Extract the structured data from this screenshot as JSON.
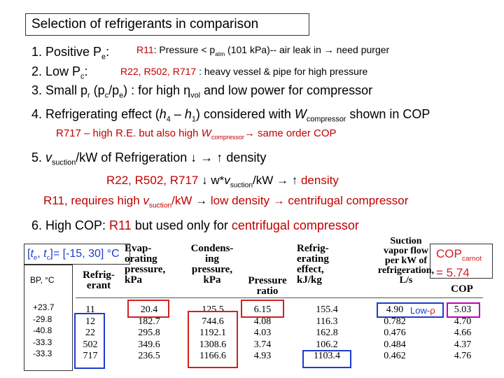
{
  "title": "Selection of refrigerants in comparison",
  "items": {
    "i1_lead": "1. Positive P",
    "i1_sub": "e",
    "i1_colon": ":",
    "i1_note_r": "R11",
    "i1_note_a": ": Pressure < p",
    "i1_note_sub": "atm",
    "i1_note_b": " (101 kPa)-- air leak in ",
    "i1_arrow": "→",
    "i1_note_c": " need purger",
    "i2_lead": "2. Low P",
    "i2_sub": "c",
    "i2_colon": ":",
    "i2_note_r": "R22, R502, R717",
    "i2_note_a": " : heavy vessel & pipe for high pressure",
    "i3_a": "3. Small p",
    "i3_sub1": "r",
    "i3_b": " (p",
    "i3_sub2": "c",
    "i3_c": "/p",
    "i3_sub3": "e",
    "i3_d": ") : for high ",
    "i3_eta": "η",
    "i3_sub4": "vol",
    "i3_e": " and low power for compressor",
    "i4_a": "4. Refrigerating effect (",
    "i4_h4": "h",
    "i4_sub4": "4",
    "i4_b": " – ",
    "i4_h1": "h",
    "i4_sub1": "1",
    "i4_c": ") considered with ",
    "i4_w": "W",
    "i4_subw": "compressor",
    "i4_d": " shown in COP",
    "i4n_a": "R717 – high R.E. but also high ",
    "i4n_w": "W",
    "i4n_sub": "compressor",
    "i4n_arrow": "→",
    "i4n_b": " same order COP",
    "i5_a": "5. ",
    "i5_v": "v",
    "i5_sub": "suction",
    "i5_b": "/kW of Refrigeration ",
    "i5_arrows": "↓ → ↑",
    "i5_c": " density",
    "i5n1_a": "R22, R502, R717 ",
    "i5n1_arrow": "↓",
    "i5n1_b": " w*",
    "i5n1_v": "v",
    "i5n1_sub": "suction",
    "i5n1_c": "/kW ",
    "i5n1_arrows": "→ ↑",
    "i5n1_d": " density",
    "i5n2_a": "R11, requires high ",
    "i5n2_v": "v",
    "i5n2_sub": "suction",
    "i5n2_b": "/kW ",
    "i5n2_arrow": "→",
    "i5n2_c": " low density ",
    "i5n2_arrow2": "→",
    "i5n2_d": " centrifugal compressor",
    "i6_a": "6. High COP: ",
    "i6_b": "R11",
    "i6_c": " but used only for ",
    "i6_d": "centrifugal compressor"
  },
  "conditions": {
    "a": "[",
    "te": "t",
    "te_sub": "e",
    "b": ", ",
    "tc": "t",
    "tc_sub": "c",
    "c": "]= [-15, 30] °C"
  },
  "cop_carnot": {
    "label": "COP",
    "sub": "carnot",
    "value": "= 5.74"
  },
  "bp_label": "BP, °C",
  "bp_values": [
    "+23.7",
    "-29.8",
    "-40.8",
    "-33.3",
    "-33.3"
  ],
  "low_rho": "Low-",
  "rho": "ρ",
  "table": {
    "headers": {
      "refrigerant": [
        "Refrig-",
        "erant"
      ],
      "evap": [
        "Evap-",
        "orating",
        "pressure,",
        "kPa"
      ],
      "cond": [
        "Condens-",
        "ing",
        "pressure,",
        "kPa"
      ],
      "ratio": [
        "Pressure",
        "ratio"
      ],
      "effect": [
        "Refrig-",
        "erating",
        "effect,",
        "kJ/kg"
      ],
      "suction": [
        "Suction",
        "vapor flow",
        "per kW of",
        "refrigeration,",
        "L/s"
      ],
      "cop": [
        "COP"
      ]
    },
    "refrigerant": [
      "11",
      "12",
      "22",
      "502",
      "717"
    ],
    "evap": [
      "20.4",
      "182.7",
      "295.8",
      "349.6",
      "236.5"
    ],
    "cond": [
      "125.5",
      "744.6",
      "1192.1",
      "1308.6",
      "1166.6"
    ],
    "ratio": [
      "6.15",
      "4.08",
      "4.03",
      "3.74",
      "4.93"
    ],
    "effect": [
      "155.4",
      "116.3",
      "162.8",
      "106.2",
      "1103.4"
    ],
    "suction": [
      "4.90",
      "0.782",
      "0.476",
      "0.484",
      "0.462"
    ],
    "cop": [
      "5.03",
      "4.70",
      "4.66",
      "4.37",
      "4.76"
    ]
  }
}
